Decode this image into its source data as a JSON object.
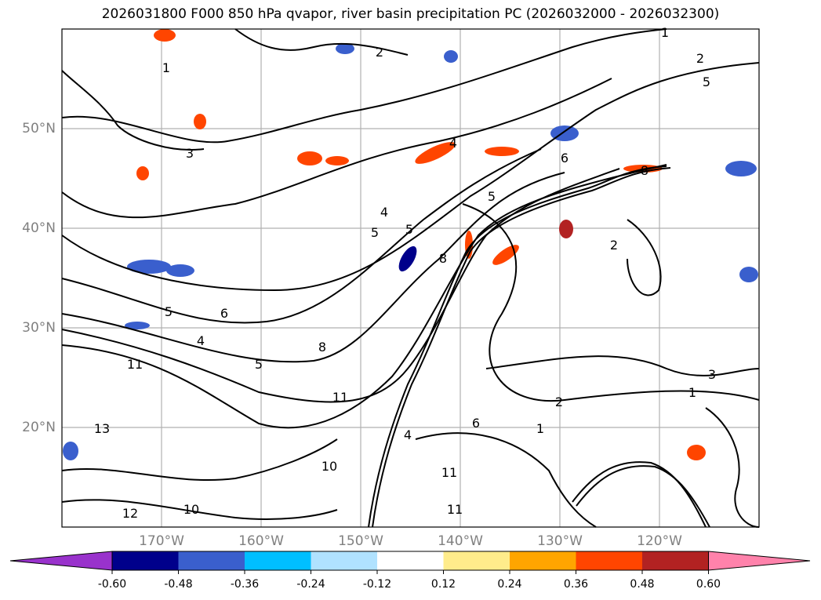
{
  "title": "2026031800 F000 850 hPa qvapor, river basin precipitation PC (2026032000 - 2026032300)",
  "map": {
    "lon_range": [
      -180,
      -110
    ],
    "lat_range": [
      10,
      60
    ],
    "lon_ticks": [
      {
        "value": -170,
        "label": "170°W"
      },
      {
        "value": -160,
        "label": "160°W"
      },
      {
        "value": -150,
        "label": "150°W"
      },
      {
        "value": -140,
        "label": "140°W"
      },
      {
        "value": -130,
        "label": "130°W"
      },
      {
        "value": -120,
        "label": "120°W"
      }
    ],
    "lat_ticks": [
      {
        "value": 50,
        "label": "50°N"
      },
      {
        "value": 40,
        "label": "40°N"
      },
      {
        "value": 30,
        "label": "30°N"
      },
      {
        "value": 20,
        "label": "20°N"
      }
    ],
    "contour_labels": [
      "1",
      "2",
      "5",
      "1",
      "2",
      "3",
      "4",
      "5",
      "8",
      "6",
      "4",
      "5",
      "5",
      "6",
      "8",
      "11",
      "13",
      "11",
      "10",
      "10",
      "11",
      "12",
      "11",
      "2",
      "1",
      "3",
      "1",
      "2",
      "8",
      "5",
      "6",
      "4",
      "4",
      "5"
    ]
  },
  "colorbar": {
    "colors": [
      "#9932cc",
      "#00008b",
      "#3a5fcd",
      "#00bfff",
      "#b0e2ff",
      "#ffffff",
      "#ffec8b",
      "#ffa500",
      "#ff4500",
      "#b22222",
      "#ff82ab"
    ],
    "ticks": [
      "-0.60",
      "-0.48",
      "-0.36",
      "-0.24",
      "-0.12",
      "0.12",
      "0.24",
      "0.36",
      "0.48",
      "0.60"
    ]
  }
}
